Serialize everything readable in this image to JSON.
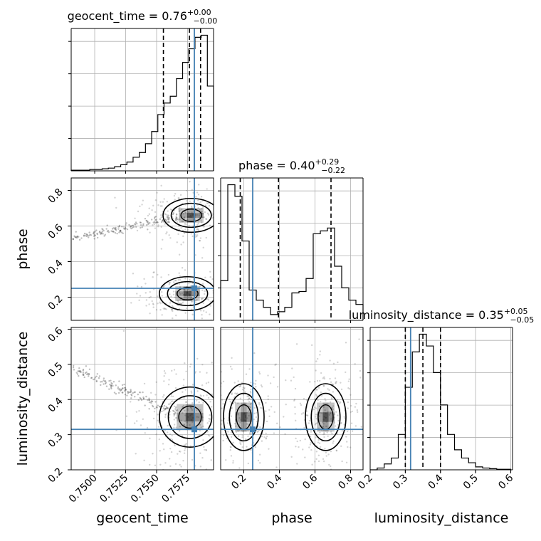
{
  "chart_data": {
    "type": "corner",
    "parameters": [
      "geocent_time",
      "phase",
      "luminosity_distance"
    ],
    "truths": {
      "geocent_time": 0.75805,
      "phase": 0.25,
      "luminosity_distance": 0.315
    },
    "titles": {
      "geocent_time": {
        "name": "geocent_time",
        "median": "0.76",
        "plus": "+0.00",
        "minus": "−0.00"
      },
      "phase": {
        "name": "phase",
        "median": "0.40",
        "plus": "+0.29",
        "minus": "−0.22"
      },
      "luminosity_distance": {
        "name": "luminosity_distance",
        "median": "0.35",
        "plus": "+0.05",
        "minus": "−0.05"
      }
    },
    "ranges": {
      "geocent_time": [
        0.7481,
        0.7596
      ],
      "phase": [
        0.07,
        0.87
      ],
      "luminosity_distance": [
        0.2,
        0.605
      ]
    },
    "ticks": {
      "geocent_time": {
        "values": [
          0.75,
          0.7525,
          0.755,
          0.7575
        ],
        "labels": [
          "0.7500",
          "0.7525",
          "0.7550",
          "0.7575"
        ]
      },
      "phase": {
        "values": [
          0.2,
          0.4,
          0.6,
          0.8
        ],
        "labels": [
          "0.2",
          "0.4",
          "0.6",
          "0.8"
        ]
      },
      "luminosity_distance": {
        "values": [
          0.2,
          0.3,
          0.4,
          0.5,
          0.6
        ],
        "labels": [
          "0.2",
          "0.3",
          "0.4",
          "0.5",
          "0.6"
        ]
      }
    },
    "quantiles": {
      "geocent_time": [
        0.75555,
        0.75765,
        0.75855
      ],
      "phase": [
        0.18,
        0.395,
        0.69
      ],
      "luminosity_distance": [
        0.3,
        0.35,
        0.4
      ]
    },
    "histograms": {
      "geocent_time": {
        "edges": [
          0.7481,
          0.7486,
          0.7491,
          0.7496,
          0.7501,
          0.7506,
          0.7511,
          0.7516,
          0.7521,
          0.7526,
          0.7531,
          0.7536,
          0.7541,
          0.7546,
          0.7551,
          0.7556,
          0.7561,
          0.7566,
          0.7571,
          0.7576,
          0.7581,
          0.7586,
          0.7591,
          0.7596
        ],
        "counts": [
          1,
          1,
          1,
          2,
          2,
          3,
          4,
          6,
          9,
          13,
          20,
          27,
          40,
          58,
          83,
          100,
          110,
          136,
          160,
          180,
          197,
          200,
          125
        ]
      },
      "phase": {
        "edges": [
          0.07,
          0.11,
          0.15,
          0.19,
          0.23,
          0.27,
          0.31,
          0.35,
          0.39,
          0.43,
          0.47,
          0.51,
          0.55,
          0.59,
          0.63,
          0.67,
          0.71,
          0.75,
          0.79,
          0.83,
          0.87
        ],
        "counts": [
          55,
          188,
          172,
          110,
          42,
          28,
          18,
          8,
          12,
          18,
          38,
          40,
          58,
          120,
          124,
          128,
          75,
          45,
          28,
          22
        ]
      },
      "luminosity_distance": {
        "edges": [
          0.2,
          0.22,
          0.24,
          0.26,
          0.28,
          0.3,
          0.32,
          0.34,
          0.36,
          0.38,
          0.4,
          0.42,
          0.44,
          0.46,
          0.48,
          0.5,
          0.52,
          0.54,
          0.56,
          0.58,
          0.6
        ],
        "counts": [
          0,
          3,
          10,
          20,
          60,
          140,
          200,
          230,
          210,
          165,
          110,
          60,
          34,
          20,
          12,
          5,
          3,
          2,
          1,
          1
        ]
      }
    },
    "density_regions": [
      {
        "x": "geocent_time",
        "y": "phase",
        "blobs": [
          [
            0.7578,
            0.66,
            0.0012,
            0.05
          ],
          [
            0.7575,
            0.22,
            0.0012,
            0.05
          ]
        ]
      },
      {
        "x": "geocent_time",
        "y": "luminosity_distance",
        "blobs": [
          [
            0.7577,
            0.35,
            0.0013,
            0.045
          ]
        ]
      },
      {
        "x": "phase",
        "y": "luminosity_distance",
        "blobs": [
          [
            0.2,
            0.35,
            0.06,
            0.05
          ],
          [
            0.66,
            0.35,
            0.06,
            0.05
          ]
        ]
      }
    ]
  }
}
